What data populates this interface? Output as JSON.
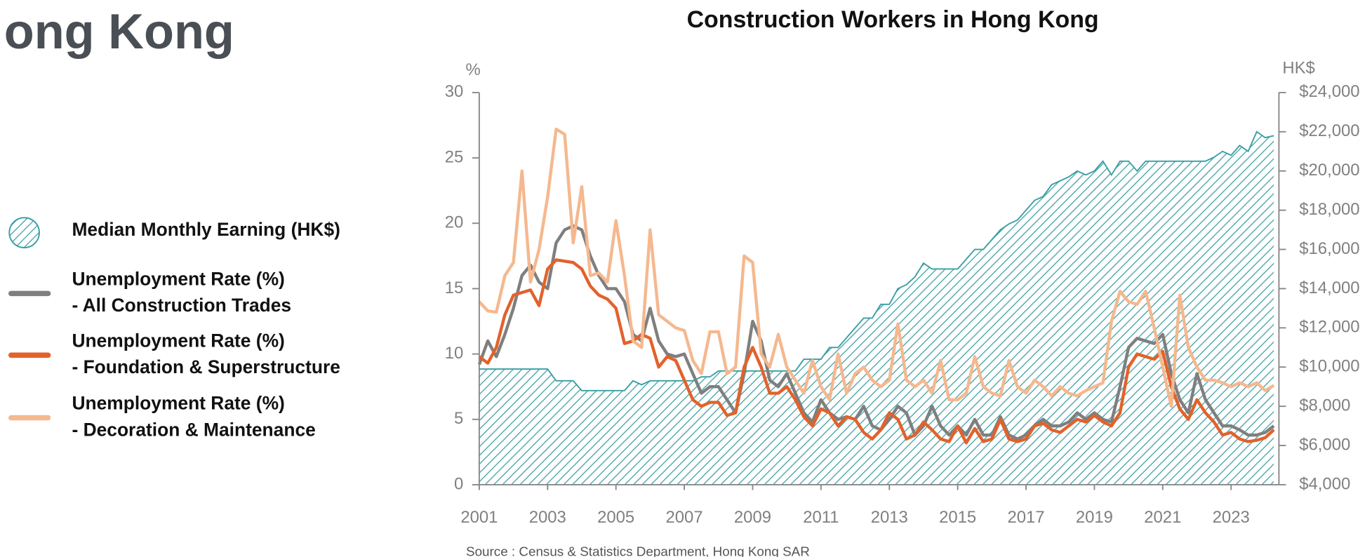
{
  "heading": "ong Kong",
  "chart_data": {
    "type": "line",
    "title": "Construction Workers in Hong Kong",
    "y_unit": "%",
    "y2_unit": "HK$",
    "source": "Source : Census & Statistics Department, Hong Kong SAR",
    "legend": "left",
    "xlim": [
      2001,
      2024.4
    ],
    "xticks": [
      2001,
      2003,
      2005,
      2007,
      2009,
      2011,
      2013,
      2015,
      2017,
      2019,
      2021,
      2023
    ],
    "ylim": [
      0,
      30
    ],
    "yticks": [
      0,
      5,
      10,
      15,
      20,
      25,
      30
    ],
    "y2lim": [
      4000,
      24000
    ],
    "y2ticks": [
      {
        "value": 4000,
        "label": "$4,000"
      },
      {
        "value": 6000,
        "label": "$6,000"
      },
      {
        "value": 8000,
        "label": "$8,000"
      },
      {
        "value": 10000,
        "label": "$10,000"
      },
      {
        "value": 12000,
        "label": "$12,000"
      },
      {
        "value": 14000,
        "label": "$14,000"
      },
      {
        "value": 16000,
        "label": "$16,000"
      },
      {
        "value": 18000,
        "label": "$18,000"
      },
      {
        "value": 20000,
        "label": "$20,000"
      },
      {
        "value": 22000,
        "label": "$22,000"
      },
      {
        "value": 24000,
        "label": "$24,000"
      }
    ],
    "x": [
      2001,
      2001.25,
      2001.5,
      2001.75,
      2002,
      2002.25,
      2002.5,
      2002.75,
      2003,
      2003.25,
      2003.5,
      2003.75,
      2004,
      2004.25,
      2004.5,
      2004.75,
      2005,
      2005.25,
      2005.5,
      2005.75,
      2006,
      2006.25,
      2006.5,
      2006.75,
      2007,
      2007.25,
      2007.5,
      2007.75,
      2008,
      2008.25,
      2008.5,
      2008.75,
      2009,
      2009.25,
      2009.5,
      2009.75,
      2010,
      2010.25,
      2010.5,
      2010.75,
      2011,
      2011.25,
      2011.5,
      2011.75,
      2012,
      2012.25,
      2012.5,
      2012.75,
      2013,
      2013.25,
      2013.5,
      2013.75,
      2014,
      2014.25,
      2014.5,
      2014.75,
      2015,
      2015.25,
      2015.5,
      2015.75,
      2016,
      2016.25,
      2016.5,
      2016.75,
      2017,
      2017.25,
      2017.5,
      2017.75,
      2018,
      2018.25,
      2018.5,
      2018.75,
      2019,
      2019.25,
      2019.5,
      2019.75,
      2020,
      2020.25,
      2020.5,
      2020.75,
      2021,
      2021.25,
      2021.5,
      2021.75,
      2022,
      2022.25,
      2022.5,
      2022.75,
      2023,
      2023.25,
      2023.5,
      2023.75,
      2024,
      2024.25
    ],
    "series": [
      {
        "name": "Median Monthly Earning (HK$)",
        "style": "area",
        "axis": "y2",
        "color": "#3a9fa3",
        "values": [
          9900,
          9900,
          9900,
          9900,
          9900,
          9900,
          9900,
          9900,
          9900,
          9300,
          9300,
          9300,
          8800,
          8800,
          8800,
          8800,
          8800,
          8800,
          9300,
          9100,
          9300,
          9300,
          9300,
          9300,
          9300,
          9300,
          9500,
          9500,
          9800,
          9800,
          9800,
          9800,
          9800,
          9800,
          9800,
          9800,
          9800,
          9800,
          10400,
          10400,
          10400,
          11000,
          11000,
          11500,
          12000,
          12500,
          12500,
          13200,
          13200,
          14000,
          14200,
          14600,
          15300,
          15000,
          15000,
          15000,
          15000,
          15500,
          16000,
          16000,
          16500,
          17000,
          17300,
          17500,
          18000,
          18500,
          18700,
          19300,
          19500,
          19700,
          20000,
          19800,
          20000,
          20500,
          19800,
          20500,
          20500,
          20000,
          20500,
          20500,
          20500,
          20500,
          20500,
          20500,
          20500,
          20500,
          20700,
          21000,
          20800,
          21300,
          21000,
          22000,
          21700,
          21800
        ]
      },
      {
        "name": "Unemployment Rate (%)\n- All Construction Trades",
        "style": "line",
        "color": "#7f7f7f",
        "values": [
          9.2,
          11,
          9.8,
          11.5,
          13.5,
          16,
          16.8,
          15.5,
          15,
          18.5,
          19.5,
          19.8,
          19.5,
          17.5,
          16,
          15,
          15,
          14,
          11.5,
          11,
          13.5,
          11,
          10,
          9.8,
          10,
          8.5,
          7,
          7.5,
          7.5,
          6.5,
          5.5,
          8.5,
          12.5,
          11,
          8,
          7.5,
          8.5,
          7,
          5.5,
          4.8,
          6.5,
          5.5,
          5,
          5.2,
          5,
          6,
          4.5,
          4.2,
          5,
          6,
          5.5,
          3.8,
          4.5,
          6,
          4.5,
          3.8,
          4.5,
          3.8,
          5,
          3.8,
          3.8,
          5.2,
          3.8,
          3.5,
          3.8,
          4.5,
          5,
          4.5,
          4.5,
          4.8,
          5.5,
          5,
          5.5,
          5,
          4.8,
          7.5,
          10.5,
          11.2,
          11,
          10.8,
          11.5,
          8.5,
          6.5,
          5.5,
          8.5,
          6.5,
          5.5,
          4.5,
          4.5,
          4.2,
          3.8,
          3.8,
          4,
          4.5
        ]
      },
      {
        "name": "Unemployment Rate (%)\n- Foundation & Superstructure",
        "style": "line",
        "color": "#e2622b",
        "values": [
          9.8,
          9.3,
          10.5,
          13,
          14.5,
          14.7,
          14.9,
          13.7,
          16.5,
          17.2,
          17.1,
          17,
          16.5,
          15.2,
          14.5,
          14.2,
          13.5,
          10.8,
          11,
          11.5,
          11.2,
          9,
          9.8,
          9.5,
          8,
          6.5,
          6,
          6.3,
          6.3,
          5.3,
          5.5,
          9,
          10.5,
          9,
          7,
          7,
          7.5,
          6.5,
          5.2,
          4.5,
          5.8,
          5.5,
          4.5,
          5.2,
          5,
          4,
          3.5,
          4.2,
          5.5,
          5,
          3.5,
          3.8,
          4.8,
          4.2,
          3.5,
          3.3,
          4.5,
          3.2,
          4.3,
          3.3,
          3.5,
          5,
          3.5,
          3.3,
          3.5,
          4.5,
          4.7,
          4.2,
          4,
          4.5,
          5,
          4.8,
          5.3,
          4.8,
          4.5,
          5.5,
          9,
          10,
          9.8,
          9.6,
          10.2,
          7.5,
          5.8,
          5,
          6.5,
          5.5,
          4.8,
          3.8,
          4,
          3.5,
          3.3,
          3.4,
          3.6,
          4.2
        ]
      },
      {
        "name": "Unemployment Rate (%)\n- Decoration & Maintenance",
        "style": "line",
        "color": "#f5b88f",
        "values": [
          14,
          13.3,
          13.2,
          16,
          17,
          24,
          15.5,
          18,
          22,
          27.2,
          26.8,
          18.5,
          22.8,
          16,
          16.2,
          15.5,
          20.2,
          16,
          11,
          10.5,
          19.5,
          13,
          12.5,
          12,
          11.8,
          9.5,
          8.5,
          11.7,
          11.7,
          8.5,
          9,
          17.5,
          17,
          10,
          9,
          11.5,
          9,
          8,
          7,
          9.5,
          7.5,
          6.5,
          10,
          7,
          8.5,
          9,
          8,
          7.5,
          8,
          12.3,
          8,
          7.5,
          8,
          7,
          9.5,
          6.5,
          6.5,
          7,
          9.8,
          7.5,
          7,
          6.8,
          9.5,
          7.5,
          7,
          8,
          7.5,
          6.8,
          7.5,
          7,
          6.8,
          7.2,
          7.5,
          7.8,
          12.5,
          14.8,
          14,
          13.8,
          14.8,
          12,
          9,
          6,
          14.5,
          10.5,
          9,
          8,
          8,
          7.8,
          7.5,
          7.8,
          7.5,
          7.8,
          7.2,
          7.6
        ]
      }
    ]
  }
}
